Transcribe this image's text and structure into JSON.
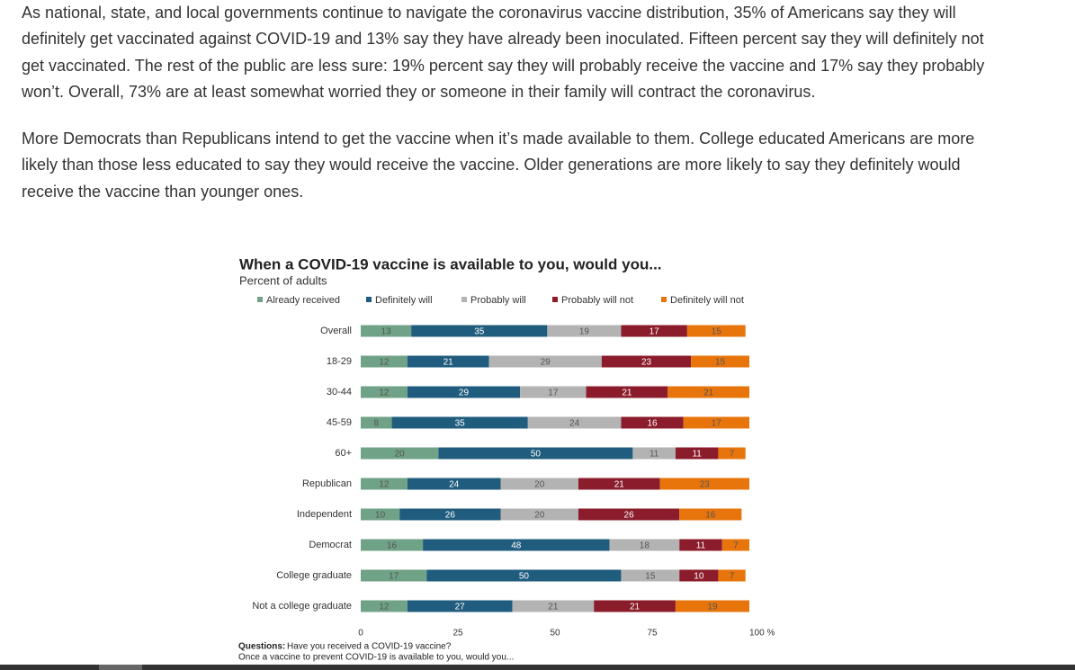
{
  "paragraphs": [
    "As national, state, and local governments continue to navigate the coronavirus vaccine distribution, 35% of Americans say they will definitely get vaccinated against COVID-19 and 13% say they have already been inoculated. Fifteen percent say they will definitely not get vaccinated.  The rest of the public are less sure: 19% percent say they will probably receive the vaccine and 17% say they probably won’t. Overall, 73% are at least somewhat worried they or someone in their family will contract the coronavirus.",
    "More Democrats than Republicans intend to get the vaccine when it’s made available to them. College educated Americans are more likely than those less educated to say they would receive the vaccine. Older generations are more likely to say they definitely would receive the vaccine than younger ones."
  ],
  "chart_data": {
    "type": "stacked-barh",
    "title": "When a COVID-19 vaccine is available to you, would you...",
    "subtitle": "Percent of adults",
    "categories": [
      "Overall",
      "18-29",
      "30-44",
      "45-59",
      "60+",
      "Republican",
      "Independent",
      "Democrat",
      "College graduate",
      "Not a college graduate"
    ],
    "series": [
      {
        "name": "Already received",
        "color": "#6fa287",
        "values": [
          13,
          12,
          12,
          8,
          20,
          12,
          10,
          16,
          17,
          12
        ]
      },
      {
        "name": "Definitely will",
        "color": "#1f5c7e",
        "values": [
          35,
          21,
          29,
          35,
          50,
          24,
          26,
          48,
          50,
          27
        ]
      },
      {
        "name": "Probably will",
        "color": "#b3b3b3",
        "values": [
          19,
          29,
          17,
          24,
          11,
          20,
          20,
          18,
          15,
          21
        ]
      },
      {
        "name": "Probably will not",
        "color": "#8b1c2b",
        "values": [
          17,
          23,
          21,
          16,
          11,
          21,
          26,
          11,
          10,
          21
        ]
      },
      {
        "name": "Definitely will not",
        "color": "#e8740c",
        "values": [
          15,
          15,
          21,
          17,
          7,
          23,
          16,
          7,
          7,
          19
        ]
      }
    ],
    "xlim": [
      0,
      100
    ],
    "xticks": [
      0,
      25,
      50,
      75,
      {
        "value": 100,
        "label": "100 %"
      }
    ]
  },
  "questions": {
    "label": "Questions:",
    "lines": [
      "Have you received a COVID-19 vaccine?",
      "Once a vaccine to prevent COVID-19 is available to you, would you..."
    ]
  }
}
